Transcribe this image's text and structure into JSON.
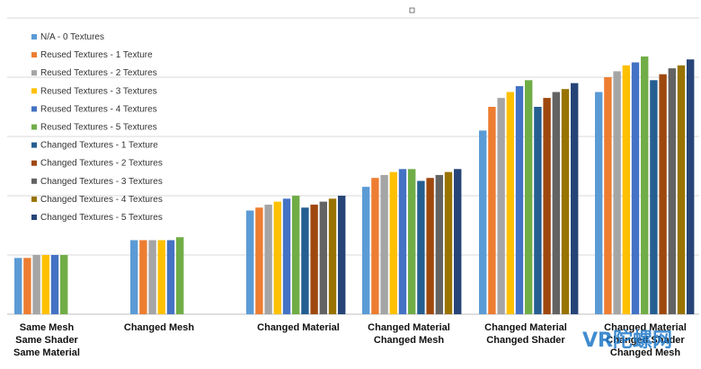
{
  "chart_data": {
    "type": "bar",
    "categories": [
      [
        "Same Mesh",
        "Same Shader",
        "Same Material"
      ],
      [
        "Changed Mesh"
      ],
      [
        "Changed Material"
      ],
      [
        "Changed Material",
        "Changed Mesh"
      ],
      [
        "Changed Material",
        "Changed Shader"
      ],
      [
        "Changed Material",
        "Changed Shader",
        "Changed Mesh"
      ]
    ],
    "ylim": [
      0,
      100
    ],
    "grid": true,
    "legend_placement": "top-left",
    "series": [
      {
        "name": "N/A - 0 Textures",
        "color": "#5b9bd5",
        "values": [
          19,
          25,
          35,
          43,
          62,
          75
        ]
      },
      {
        "name": "Reused Textures - 1 Texture",
        "color": "#ed7d31",
        "values": [
          19,
          25,
          36,
          46,
          70,
          80
        ]
      },
      {
        "name": "Reused Textures - 2 Textures",
        "color": "#a5a5a5",
        "values": [
          20,
          25,
          37,
          47,
          73,
          82
        ]
      },
      {
        "name": "Reused Textures - 3 Textures",
        "color": "#ffc000",
        "values": [
          20,
          25,
          38,
          48,
          75,
          84
        ]
      },
      {
        "name": "Reused Textures - 4 Textures",
        "color": "#4472c4",
        "values": [
          20,
          25,
          39,
          49,
          77,
          85
        ]
      },
      {
        "name": "Reused Textures - 5 Textures",
        "color": "#70ad47",
        "values": [
          20,
          26,
          40,
          49,
          79,
          87
        ]
      },
      {
        "name": "Changed Textures - 1 Texture",
        "color": "#255e91",
        "values": [
          null,
          null,
          36,
          45,
          70,
          79
        ]
      },
      {
        "name": "Changed Textures - 2 Textures",
        "color": "#9e480e",
        "values": [
          null,
          null,
          37,
          46,
          73,
          81
        ]
      },
      {
        "name": "Changed Textures - 3 Textures",
        "color": "#636363",
        "values": [
          null,
          null,
          38,
          47,
          75,
          83
        ]
      },
      {
        "name": "Changed Textures - 4 Textures",
        "color": "#997300",
        "values": [
          null,
          null,
          39,
          48,
          76,
          84
        ]
      },
      {
        "name": "Changed Textures - 5 Textures",
        "color": "#264478",
        "values": [
          null,
          null,
          40,
          49,
          78,
          86
        ]
      }
    ]
  },
  "watermark": {
    "text": "VR陀螺网",
    "color": "#1f78c8"
  }
}
